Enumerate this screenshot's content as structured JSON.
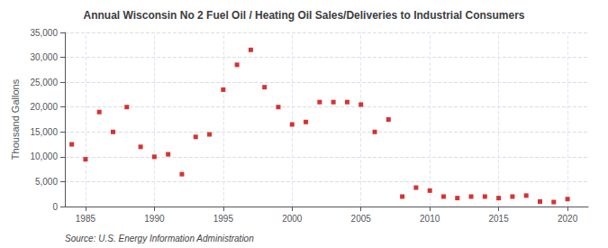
{
  "chart_data": {
    "type": "scatter",
    "title": "Annual Wisconsin No 2 Fuel Oil / Heating Oil Sales/Deliveries to Industrial Consumers",
    "ylabel": "Thousand Gallons",
    "annotation": "Source: U.S. Energy Information Administration",
    "color": "#cc0000",
    "marker": "square",
    "grid": true,
    "x": [
      1984,
      1985,
      1986,
      1987,
      1988,
      1989,
      1990,
      1991,
      1992,
      1993,
      1994,
      1995,
      1996,
      1997,
      1998,
      1999,
      2000,
      2001,
      2002,
      2003,
      2004,
      2005,
      2006,
      2007,
      2008,
      2009,
      2010,
      2011,
      2012,
      2013,
      2014,
      2015,
      2016,
      2017,
      2018,
      2019,
      2020
    ],
    "values": [
      12500,
      9500,
      19000,
      15000,
      20000,
      12000,
      10000,
      10500,
      6500,
      14000,
      14500,
      23500,
      28500,
      31500,
      24000,
      20000,
      16500,
      17000,
      21000,
      21000,
      21000,
      20500,
      15000,
      17500,
      2000,
      3800,
      3200,
      2000,
      1700,
      2000,
      2000,
      1700,
      2000,
      2200,
      1000,
      900,
      1500
    ],
    "xlim": [
      1983.5,
      2021.5
    ],
    "xticks": [
      1985,
      1990,
      1995,
      2000,
      2005,
      2010,
      2015,
      2020
    ],
    "ylim": [
      0,
      35000
    ],
    "yticks": [
      0,
      {
        "value": 5000,
        "label": "5,000"
      },
      {
        "value": 10000,
        "label": "10,000"
      },
      {
        "value": 15000,
        "label": "15,000"
      },
      {
        "value": 20000,
        "label": "20,000"
      },
      {
        "value": 25000,
        "label": "25,000"
      },
      {
        "value": 30000,
        "label": "30,000"
      },
      {
        "value": 35000,
        "label": "35,000"
      }
    ]
  }
}
